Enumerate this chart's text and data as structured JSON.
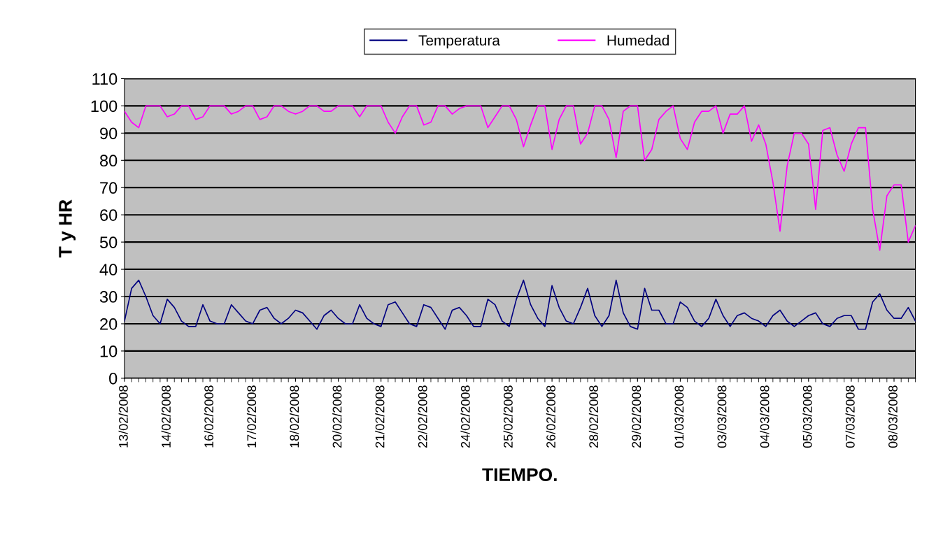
{
  "chart_data": {
    "type": "line",
    "xlabel": "TIEMPO.",
    "ylabel": "T y HR",
    "categories": [
      "13/02/2008",
      null,
      null,
      null,
      null,
      null,
      "14/02/2008",
      null,
      null,
      null,
      null,
      null,
      "16/02/2008",
      null,
      null,
      null,
      null,
      null,
      "17/02/2008",
      null,
      null,
      null,
      null,
      null,
      "18/02/2008",
      null,
      null,
      null,
      null,
      null,
      "20/02/2008",
      null,
      null,
      null,
      null,
      null,
      "21/02/2008",
      null,
      null,
      null,
      null,
      null,
      "22/02/2008",
      null,
      null,
      null,
      null,
      null,
      "24/02/2008",
      null,
      null,
      null,
      null,
      null,
      "25/02/2008",
      null,
      null,
      null,
      null,
      null,
      "26/02/2008",
      null,
      null,
      null,
      null,
      null,
      "28/02/2008",
      null,
      null,
      null,
      null,
      null,
      "29/02/2008",
      null,
      null,
      null,
      null,
      null,
      "01/03/2008",
      null,
      null,
      null,
      null,
      null,
      "03/03/2008",
      null,
      null,
      null,
      null,
      null,
      "04/03/2008",
      null,
      null,
      null,
      null,
      null,
      "05/03/2008",
      null,
      null,
      null,
      null,
      null,
      "07/03/2008",
      null,
      null,
      null,
      null,
      null,
      "08/03/2008",
      null,
      null,
      null
    ],
    "series": [
      {
        "name": "Temperatura",
        "color": "#000080",
        "values": [
          21,
          33,
          36,
          30,
          23,
          20,
          29,
          26,
          21,
          19,
          19,
          27,
          21,
          20,
          20,
          27,
          24,
          21,
          20,
          25,
          26,
          22,
          20,
          22,
          25,
          24,
          21,
          18,
          23,
          25,
          22,
          20,
          20,
          27,
          22,
          20,
          19,
          27,
          28,
          24,
          20,
          19,
          27,
          26,
          22,
          18,
          25,
          26,
          23,
          19,
          19,
          29,
          27,
          21,
          19,
          29,
          36,
          27,
          22,
          19,
          34,
          26,
          21,
          20,
          26,
          33,
          23,
          19,
          23,
          36,
          24,
          19,
          18,
          33,
          25,
          25,
          20,
          20,
          28,
          26,
          21,
          19,
          22,
          29,
          23,
          19,
          23,
          24,
          22,
          21,
          19,
          23,
          25,
          21,
          19,
          21,
          23,
          24,
          20,
          19,
          22,
          23,
          23,
          18,
          18,
          28,
          31,
          25,
          22,
          22,
          26,
          21
        ]
      },
      {
        "name": "Humedad",
        "color": "#ff00ff",
        "values": [
          98,
          94,
          92,
          100,
          100,
          100,
          96,
          97,
          100,
          100,
          95,
          96,
          100,
          100,
          100,
          97,
          98,
          100,
          100,
          95,
          96,
          100,
          100,
          98,
          97,
          98,
          100,
          100,
          98,
          98,
          100,
          100,
          100,
          96,
          100,
          100,
          100,
          94,
          90,
          96,
          100,
          100,
          93,
          94,
          100,
          100,
          97,
          99,
          100,
          100,
          100,
          92,
          96,
          100,
          100,
          95,
          85,
          93,
          100,
          100,
          84,
          95,
          100,
          100,
          86,
          90,
          100,
          100,
          95,
          81,
          98,
          100,
          100,
          80,
          84,
          95,
          98,
          100,
          88,
          84,
          94,
          98,
          98,
          100,
          90,
          97,
          97,
          100,
          87,
          93,
          86,
          72,
          54,
          78,
          90,
          90,
          86,
          62,
          91,
          92,
          82,
          76,
          86,
          92,
          92,
          62,
          47,
          67,
          71,
          71,
          50,
          56
        ]
      }
    ],
    "ylim": [
      0,
      110
    ],
    "yticks": [
      0,
      10,
      20,
      30,
      40,
      50,
      60,
      70,
      80,
      90,
      100,
      110
    ],
    "grid": "y",
    "legend": "top",
    "marker": "none",
    "line_style": "solid"
  }
}
